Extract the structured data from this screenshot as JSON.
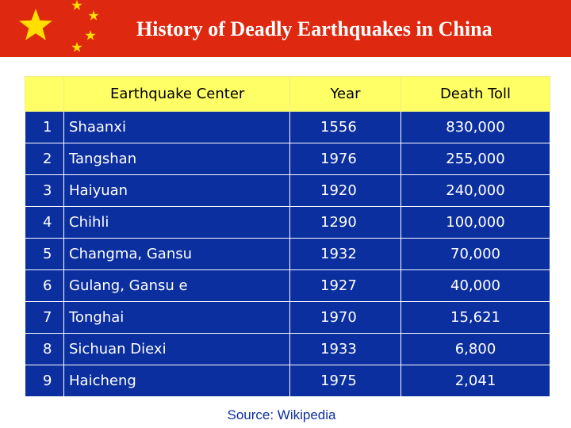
{
  "banner": {
    "title": "History of Deadly Earthquakes in China",
    "flag_icon": "china-flag-icon",
    "colors": {
      "red": "#de2910",
      "star": "#ffde00"
    }
  },
  "table": {
    "headers": {
      "number": "",
      "center": "Earthquake Center",
      "year": "Year",
      "toll": "Death Toll"
    },
    "rows": [
      {
        "n": "1",
        "center": "Shaanxi",
        "year": "1556",
        "toll": "830,000"
      },
      {
        "n": "2",
        "center": "Tangshan",
        "year": "1976",
        "toll": "255,000"
      },
      {
        "n": "3",
        "center": "Haiyuan",
        "year": "1920",
        "toll": "240,000"
      },
      {
        "n": "4",
        "center": "Chihli",
        "year": "1290",
        "toll": "100,000"
      },
      {
        "n": "5",
        "center": "Changma, Gansu",
        "year": "1932",
        "toll": "70,000"
      },
      {
        "n": "6",
        "center": "Gulang, Gansu e",
        "year": "1927",
        "toll": "40,000"
      },
      {
        "n": "7",
        "center": "Tonghai",
        "year": "1970",
        "toll": "15,621"
      },
      {
        "n": "8",
        "center": "Sichuan Diexi",
        "year": "1933",
        "toll": "6,800"
      },
      {
        "n": "9",
        "center": "Haicheng",
        "year": "1975",
        "toll": "2,041"
      }
    ],
    "colors": {
      "header_bg": "#ffff66",
      "row_bg": "#0b2f9e",
      "row_text": "#ffffff"
    }
  },
  "footer": {
    "source": "Source: Wikipedia"
  }
}
